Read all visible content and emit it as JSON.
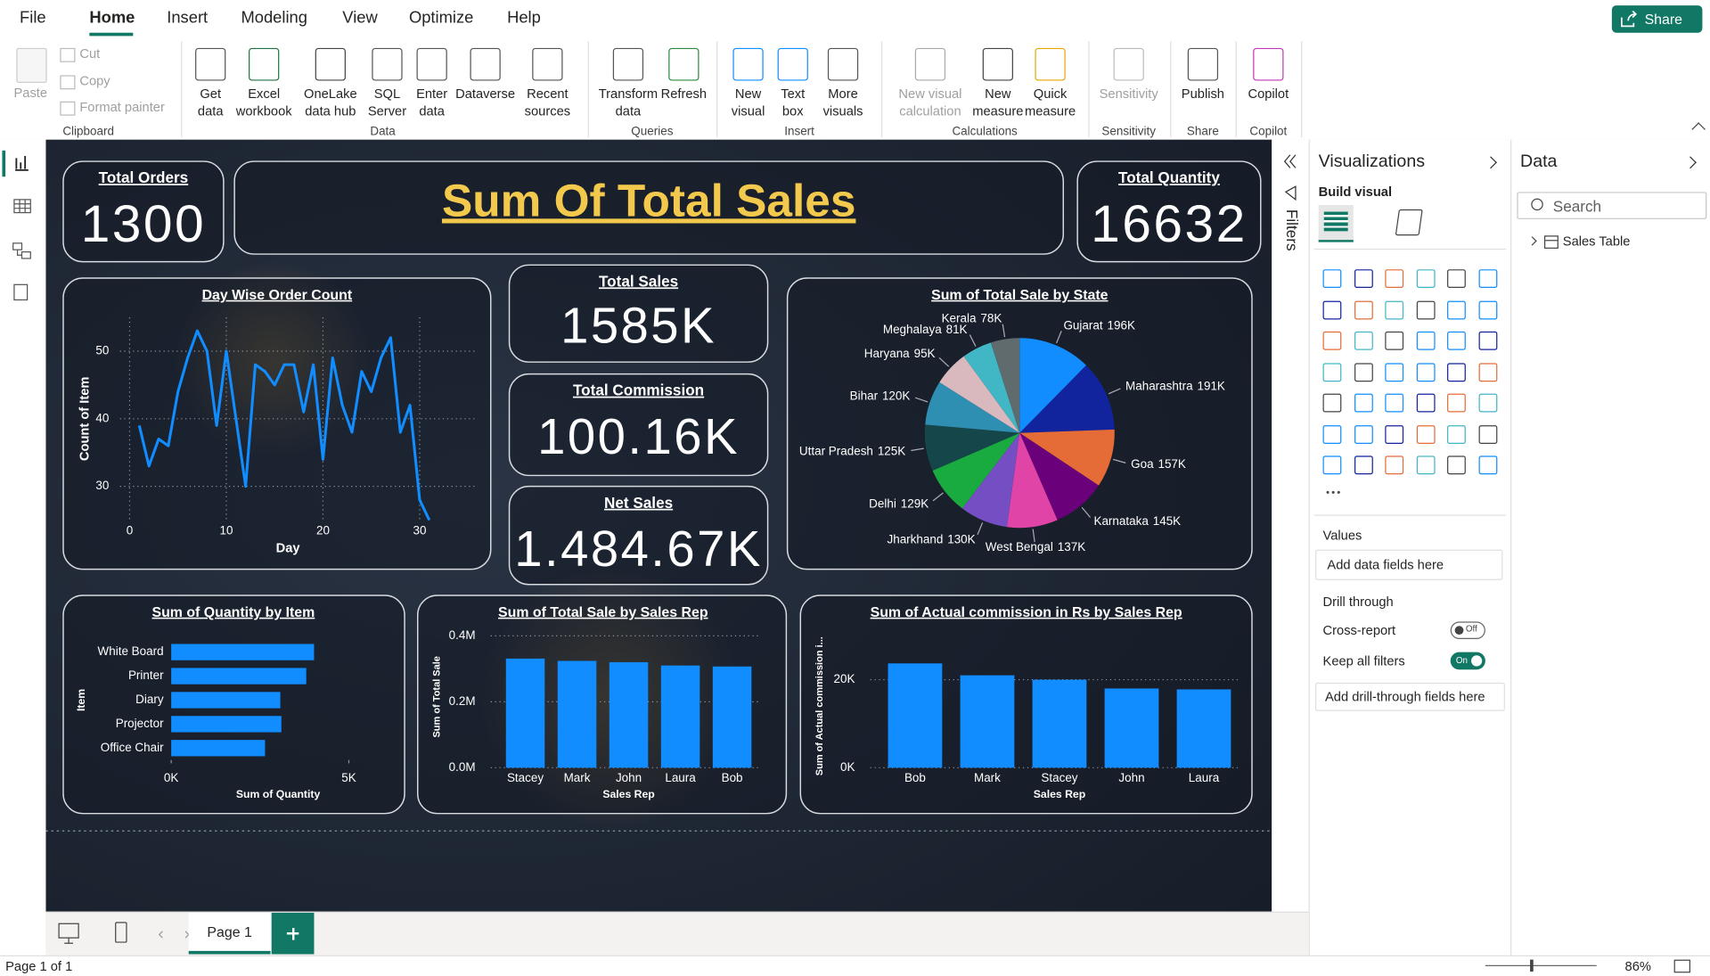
{
  "menu": {
    "tabs": [
      "File",
      "Home",
      "Insert",
      "Modeling",
      "View",
      "Optimize",
      "Help"
    ]
  },
  "share": "Share",
  "ribbon": {
    "groups": [
      {
        "name": "Clipboard",
        "buttons": [
          "Paste",
          "Cut",
          "Copy",
          "Format painter"
        ]
      },
      {
        "name": "Data",
        "buttons": [
          "Get data",
          "Excel workbook",
          "OneLake data hub",
          "SQL Server",
          "Enter data",
          "Dataverse",
          "Recent sources"
        ]
      },
      {
        "name": "Queries",
        "buttons": [
          "Transform data",
          "Refresh"
        ]
      },
      {
        "name": "Insert",
        "buttons": [
          "New visual",
          "Text box",
          "More visuals"
        ]
      },
      {
        "name": "Calculations",
        "buttons": [
          "New visual calculation",
          "New measure",
          "Quick measure"
        ]
      },
      {
        "name": "Sensitivity",
        "buttons": [
          "Sensitivity"
        ]
      },
      {
        "name": "Share",
        "buttons": [
          "Publish"
        ]
      },
      {
        "name": "Copilot",
        "buttons": [
          "Copilot"
        ]
      }
    ]
  },
  "report": {
    "title": "Sum Of Total Sales",
    "cards": [
      {
        "label": "Total Orders",
        "value": "1300"
      },
      {
        "label": "Total Quantity",
        "value": "16632"
      },
      {
        "label": "Total Sales",
        "value": "1585K"
      },
      {
        "label": "Total Commission",
        "value": "100.16K"
      },
      {
        "label": "Net Sales",
        "value": "1.484.67K"
      }
    ]
  },
  "chart_data": [
    {
      "type": "line",
      "title": "Day Wise Order Count",
      "xlabel": "Day",
      "ylabel": "Count of Item",
      "color": "#118dff",
      "x": [
        1,
        2,
        3,
        4,
        5,
        6,
        7,
        8,
        9,
        10,
        11,
        12,
        13,
        14,
        15,
        16,
        17,
        18,
        19,
        20,
        21,
        22,
        23,
        24,
        25,
        26,
        27,
        28,
        29,
        30,
        31
      ],
      "values": [
        39,
        33,
        37,
        36,
        44,
        49,
        53,
        50,
        39,
        50,
        40,
        30,
        48,
        47,
        45,
        48,
        48,
        41,
        48,
        34,
        49,
        42,
        38,
        47,
        44,
        49,
        52,
        38,
        42,
        28,
        25
      ],
      "xlim": [
        -1,
        36
      ],
      "xticks": [
        0,
        10,
        20,
        30
      ],
      "ylim": [
        25,
        55
      ],
      "yticks": [
        30,
        40,
        50
      ],
      "grid": true
    },
    {
      "type": "pie",
      "title": "Sum of Total Sale by State",
      "categories": [
        "Gujarat",
        "Maharashtra",
        "Goa",
        "Karnataka",
        "West Bengal",
        "Jharkhand",
        "Delhi",
        "Uttar Pradesh",
        "Bihar",
        "Haryana",
        "Meghalaya",
        "Kerala"
      ],
      "values": [
        196,
        191,
        157,
        145,
        137,
        130,
        129,
        125,
        120,
        95,
        81,
        78
      ],
      "value_labels": [
        "196K",
        "191K",
        "157K",
        "145K",
        "137K",
        "130K",
        "129K",
        "125K",
        "120K",
        "95K",
        "81K",
        "78K"
      ],
      "colors": [
        "#118dff",
        "#12239e",
        "#e66c37",
        "#6b007b",
        "#e044a7",
        "#744ec2",
        "#1aab40",
        "#15474a",
        "#2f8fb3",
        "#d9b9bd",
        "#41b6c4",
        "#5f6b6d"
      ]
    },
    {
      "type": "hbar",
      "title": "Sum of Quantity by Item",
      "xlabel": "Sum of Quantity",
      "ylabel": "Item",
      "color": "#118dff",
      "categories": [
        "White Board",
        "Printer",
        "Diary",
        "Projector",
        "Office Chair"
      ],
      "values": [
        4020,
        3800,
        3070,
        3100,
        2640
      ],
      "xlim": [
        0,
        6200
      ],
      "xticks": [
        {
          "value": 0,
          "label": "0K"
        },
        {
          "value": 5000,
          "label": "5K"
        }
      ]
    },
    {
      "type": "bar",
      "title": "Sum of Total Sale by Sales Rep",
      "xlabel": "Sales Rep",
      "ylabel": "Sum of Total Sale",
      "color": "#118dff",
      "categories": [
        "Stacey",
        "Mark",
        "John",
        "Laura",
        "Bob"
      ],
      "values": [
        331000,
        324000,
        320000,
        310000,
        307000
      ],
      "ylim": [
        0,
        430000
      ],
      "yticks": [
        {
          "value": 0,
          "label": "0.0M"
        },
        {
          "value": 200000,
          "label": "0.2M"
        },
        {
          "value": 400000,
          "label": "0.4M"
        }
      ],
      "grid": true
    },
    {
      "type": "bar",
      "title": "Sum of Actual commission in Rs by Sales Rep",
      "xlabel": "Sales Rep",
      "ylabel": "Sum of Actual commission i...",
      "color": "#118dff",
      "categories": [
        "Bob",
        "Mark",
        "Stacey",
        "John",
        "Laura"
      ],
      "values": [
        23700,
        21000,
        20000,
        18000,
        17800
      ],
      "ylim": [
        0,
        28000
      ],
      "yticks": [
        {
          "value": 0,
          "label": "0K"
        },
        {
          "value": 20000,
          "label": "20K"
        }
      ],
      "grid": true
    }
  ],
  "filters": "Filters",
  "visualizations": {
    "title": "Visualizations",
    "build": "Build visual",
    "values": "Values",
    "values_hint": "Add data fields here",
    "drill": "Drill through",
    "cross_report": "Cross-report",
    "cross_state": "Off",
    "keep_filters": "Keep all filters",
    "keep_state": "On",
    "drill_hint": "Add drill-through fields here"
  },
  "data_pane": {
    "title": "Data",
    "search": "Search",
    "tables": [
      "Sales Table"
    ]
  },
  "pages": {
    "tabs": [
      "Page 1"
    ],
    "status": "Page 1 of 1",
    "zoom": "86%"
  }
}
